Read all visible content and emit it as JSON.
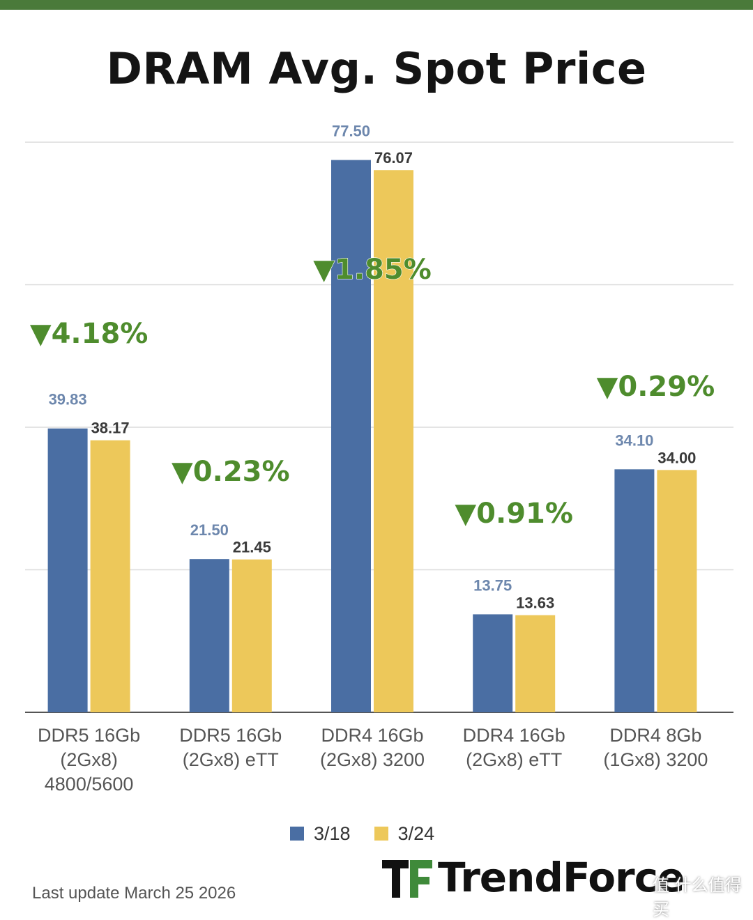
{
  "title": "DRAM Avg. Spot Price",
  "footer_note": "Last update March 25 2026",
  "logo_text": "TrendForce",
  "watermark": "值 什么值得买",
  "colors": {
    "series_1": "#4a6ea3",
    "series_2": "#edc85a",
    "change_green": "#4e8c2d",
    "grid": "#dcdcdc"
  },
  "chart_data": {
    "type": "bar",
    "title": "DRAM Avg. Spot Price",
    "categories": [
      [
        "DDR5 16Gb",
        "(2Gx8)",
        "4800/5600"
      ],
      [
        "DDR5 16Gb",
        "(2Gx8) eTT"
      ],
      [
        "DDR4 16Gb",
        "(2Gx8) 3200"
      ],
      [
        "DDR4 16Gb",
        "(2Gx8) eTT"
      ],
      [
        "DDR4 8Gb",
        "(1Gx8) 3200"
      ]
    ],
    "series": [
      {
        "name": "3/18",
        "values": [
          39.83,
          21.5,
          77.5,
          13.75,
          34.1
        ],
        "labels": [
          "39.83",
          "21.50",
          "77.50",
          "13.75",
          "34.10"
        ]
      },
      {
        "name": "3/24",
        "values": [
          38.17,
          21.45,
          76.07,
          13.63,
          34.0
        ],
        "labels": [
          "38.17",
          "21.45",
          "76.07",
          "13.63",
          "34.00"
        ]
      }
    ],
    "changes": [
      "▼4.18%",
      "▼0.23%",
      "▼1.85%",
      "▼0.91%",
      "▼0.29%"
    ],
    "ylim": [
      0,
      80
    ],
    "grid": true,
    "legend": "bottom"
  }
}
